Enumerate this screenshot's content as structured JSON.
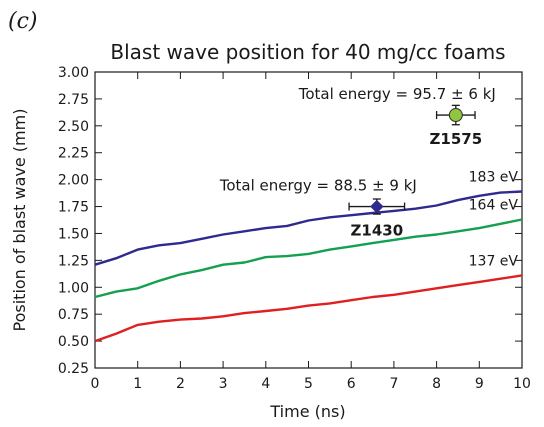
{
  "panel_label": "(c)",
  "chart_data": {
    "type": "line",
    "title": "Blast wave position for 40 mg/cc foams",
    "xlabel": "Time (ns)",
    "ylabel": "Position of blast wave (mm)",
    "xlim": [
      0,
      10
    ],
    "ylim": [
      0.25,
      3.0
    ],
    "xticks": [
      "0",
      "1",
      "2",
      "3",
      "4",
      "5",
      "6",
      "7",
      "8",
      "9",
      "10"
    ],
    "yticks": [
      "0.25",
      "0.50",
      "0.75",
      "1.00",
      "1.25",
      "1.50",
      "1.75",
      "2.00",
      "2.25",
      "2.50",
      "2.75",
      "3.00"
    ],
    "grid": false,
    "series": [
      {
        "name": "183 eV",
        "color": "#2e2a8f",
        "x": [
          0,
          0.5,
          1,
          1.5,
          2,
          2.5,
          3,
          3.5,
          4,
          4.5,
          5,
          5.5,
          6,
          6.5,
          7,
          7.5,
          8,
          8.5,
          9,
          9.5,
          10
        ],
        "y": [
          1.21,
          1.27,
          1.35,
          1.39,
          1.41,
          1.45,
          1.49,
          1.52,
          1.55,
          1.57,
          1.62,
          1.65,
          1.67,
          1.69,
          1.71,
          1.73,
          1.76,
          1.81,
          1.85,
          1.88,
          1.89
        ]
      },
      {
        "name": "164 eV",
        "color": "#14a050",
        "x": [
          0,
          0.5,
          1,
          1.5,
          2,
          2.5,
          3,
          3.5,
          4,
          4.5,
          5,
          5.5,
          6,
          6.5,
          7,
          7.5,
          8,
          8.5,
          9,
          9.5,
          10
        ],
        "y": [
          0.91,
          0.96,
          0.99,
          1.06,
          1.12,
          1.16,
          1.21,
          1.23,
          1.28,
          1.29,
          1.31,
          1.35,
          1.38,
          1.41,
          1.44,
          1.47,
          1.49,
          1.52,
          1.55,
          1.59,
          1.63
        ]
      },
      {
        "name": "137 eV",
        "color": "#e02020",
        "x": [
          0,
          0.5,
          1,
          1.5,
          2,
          2.5,
          3,
          3.5,
          4,
          4.5,
          5,
          5.5,
          6,
          6.5,
          7,
          7.5,
          8,
          8.5,
          9,
          9.5,
          10
        ],
        "y": [
          0.5,
          0.57,
          0.65,
          0.68,
          0.7,
          0.71,
          0.73,
          0.76,
          0.78,
          0.8,
          0.83,
          0.85,
          0.88,
          0.91,
          0.93,
          0.96,
          0.99,
          1.02,
          1.05,
          1.08,
          1.11
        ]
      }
    ],
    "points": [
      {
        "label": "Z1575",
        "annotation": "Total energy = 95.7 ± 6 kJ",
        "x": 8.45,
        "y": 2.6,
        "xerr": 0.45,
        "yerr": 0.09,
        "color": "#8ec63f"
      },
      {
        "label": "Z1430",
        "annotation": "Total energy = 88.5 ± 9 kJ",
        "x": 6.6,
        "y": 1.75,
        "xerr": 0.65,
        "yerr": 0.07,
        "color": "#2e2a8f"
      }
    ]
  }
}
